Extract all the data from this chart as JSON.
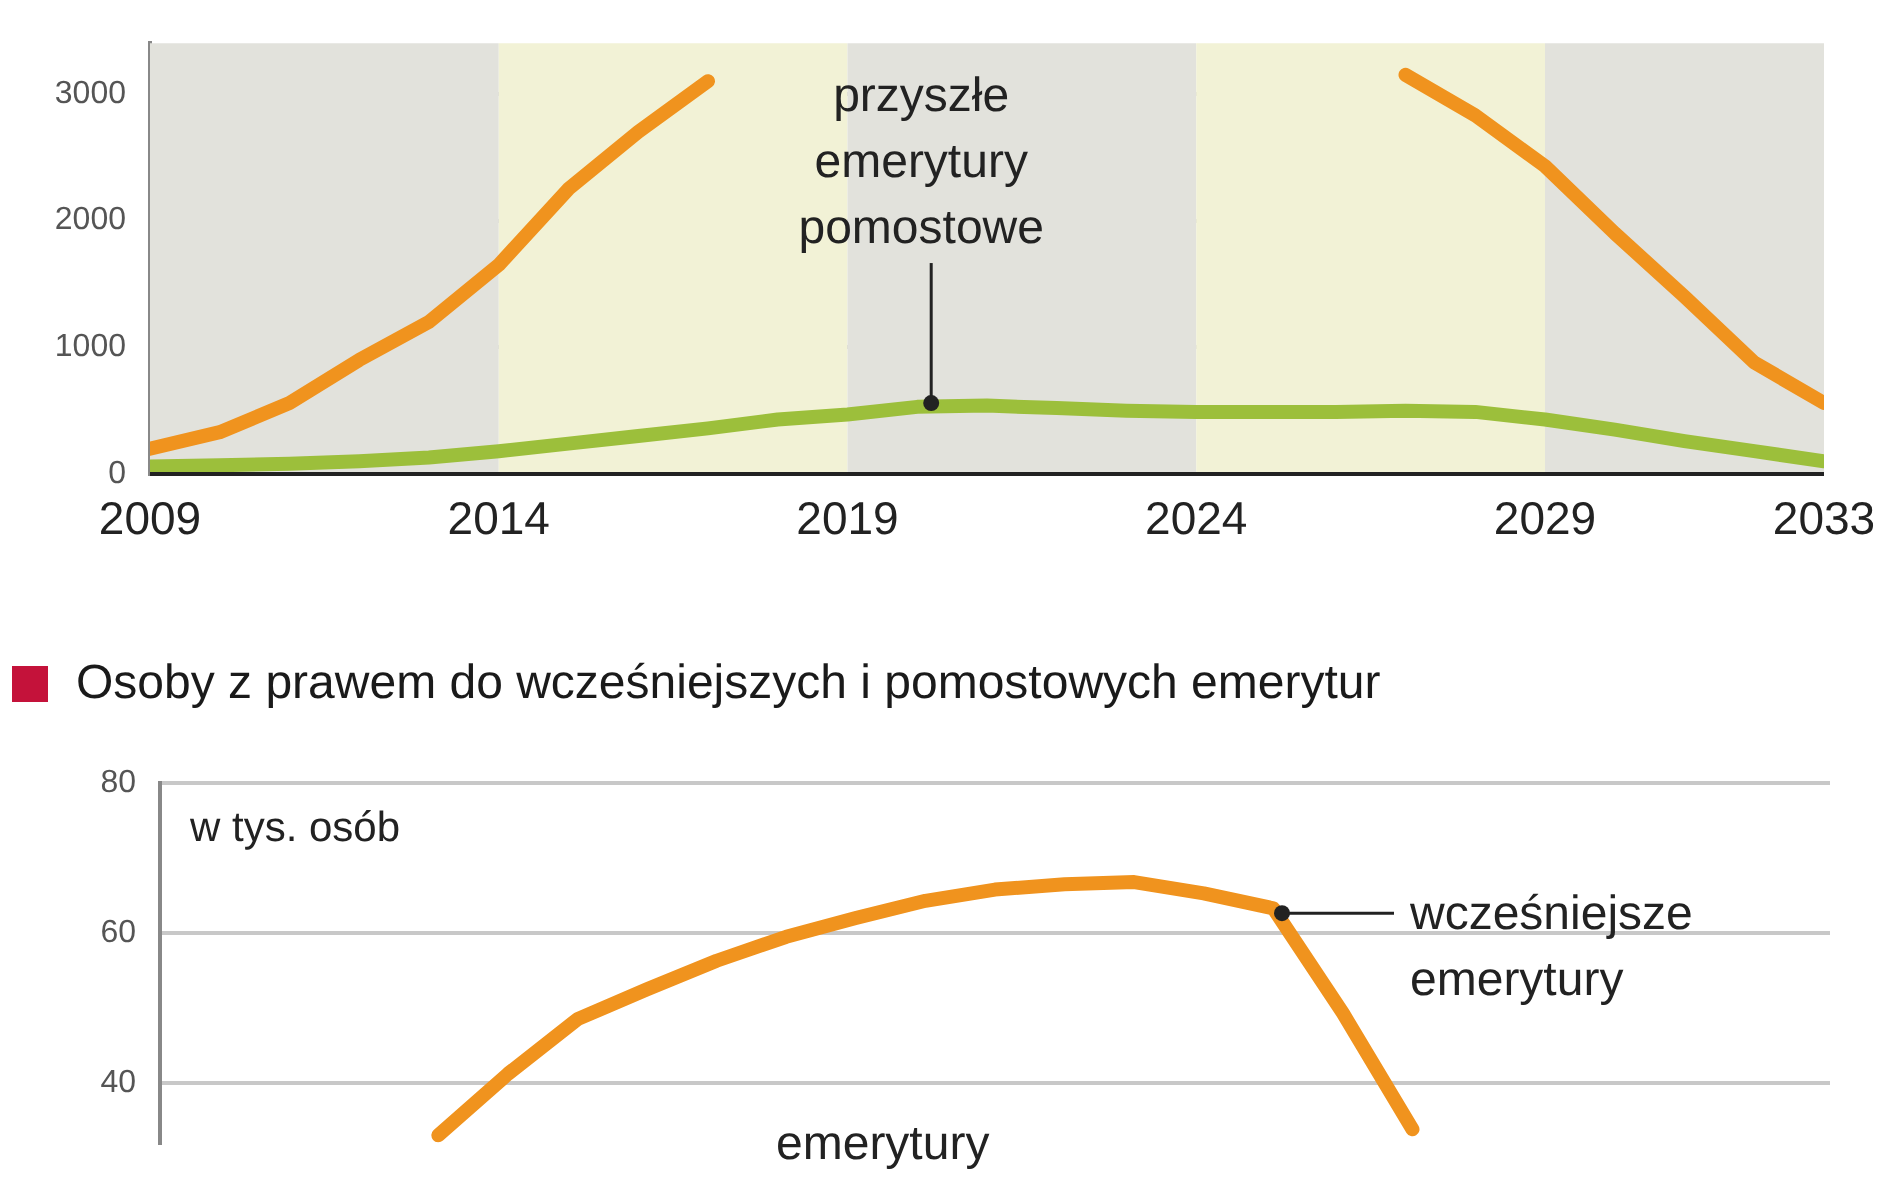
{
  "chart_data": [
    {
      "type": "line",
      "x": [
        2009,
        2010,
        2011,
        2012,
        2013,
        2014,
        2015,
        2016,
        2017,
        2018,
        2019,
        2020,
        2021,
        2022,
        2023,
        2024,
        2025,
        2026,
        2027,
        2028,
        2029,
        2030,
        2031,
        2032,
        2033
      ],
      "series": [
        {
          "color": "#f0931e",
          "values": [
            200,
            330,
            560,
            900,
            1200,
            1650,
            2250,
            2700,
            3100,
            null,
            null,
            null,
            null,
            null,
            null,
            null,
            null,
            null,
            3150,
            2830,
            2430,
            1900,
            1400,
            880,
            560
          ]
        },
        {
          "color": "#9cbf3b",
          "values": [
            60,
            70,
            80,
            100,
            130,
            180,
            240,
            300,
            360,
            430,
            470,
            530,
            540,
            520,
            500,
            490,
            490,
            490,
            500,
            490,
            430,
            350,
            260,
            180,
            100
          ]
        }
      ],
      "xlim": [
        2009,
        2033
      ],
      "xticks": [
        2009,
        2014,
        2019,
        2024,
        2029,
        2033
      ],
      "ylim": [
        0,
        3400
      ],
      "yticks": [
        0,
        1000,
        2000,
        3000
      ],
      "bands": [
        {
          "axis": "x",
          "from": 2009,
          "to": 2014,
          "color": "#e2e2dc"
        },
        {
          "axis": "x",
          "from": 2014,
          "to": 2019,
          "color": "#f2f2d6"
        },
        {
          "axis": "x",
          "from": 2019,
          "to": 2024,
          "color": "#e2e2dc"
        },
        {
          "axis": "x",
          "from": 2024,
          "to": 2029,
          "color": "#f2f2d6"
        },
        {
          "axis": "x",
          "from": 2029,
          "to": 2033,
          "color": "#e2e2dc"
        }
      ],
      "annotations": [
        {
          "text": "przyszłe emerytury pomostowe",
          "x": 2020.2,
          "y": 560
        }
      ],
      "grid": "y",
      "legend": false,
      "marker": "none",
      "line_style": "solid"
    },
    {
      "type": "line",
      "title": "Osoby z prawem do wcześniejszych i pomostowych emerytur",
      "categories": [
        null,
        null,
        null,
        null,
        null,
        null,
        null,
        null,
        null,
        null,
        null,
        null,
        null,
        null,
        null,
        null,
        null,
        null,
        null,
        null,
        null,
        null,
        null,
        null,
        null
      ],
      "series": [
        {
          "color": "#f0931e",
          "values": [
            null,
            null,
            null,
            null,
            33,
            41.2,
            48.5,
            52.5,
            56.3,
            59.5,
            62,
            64.3,
            65.8,
            66.5,
            66.8,
            65.3,
            63.3,
            49.3,
            33.8,
            null,
            null,
            null,
            null,
            null,
            null
          ]
        }
      ],
      "ylim": [
        32,
        80
      ],
      "yticks": [
        40,
        60,
        80
      ],
      "annotations": [
        "w tys. osób",
        "wcześniejsze emerytury",
        "emerytury"
      ],
      "tick_labels": "y",
      "grid": "y",
      "legend": false,
      "marker": "none",
      "line_style": "solid"
    }
  ]
}
